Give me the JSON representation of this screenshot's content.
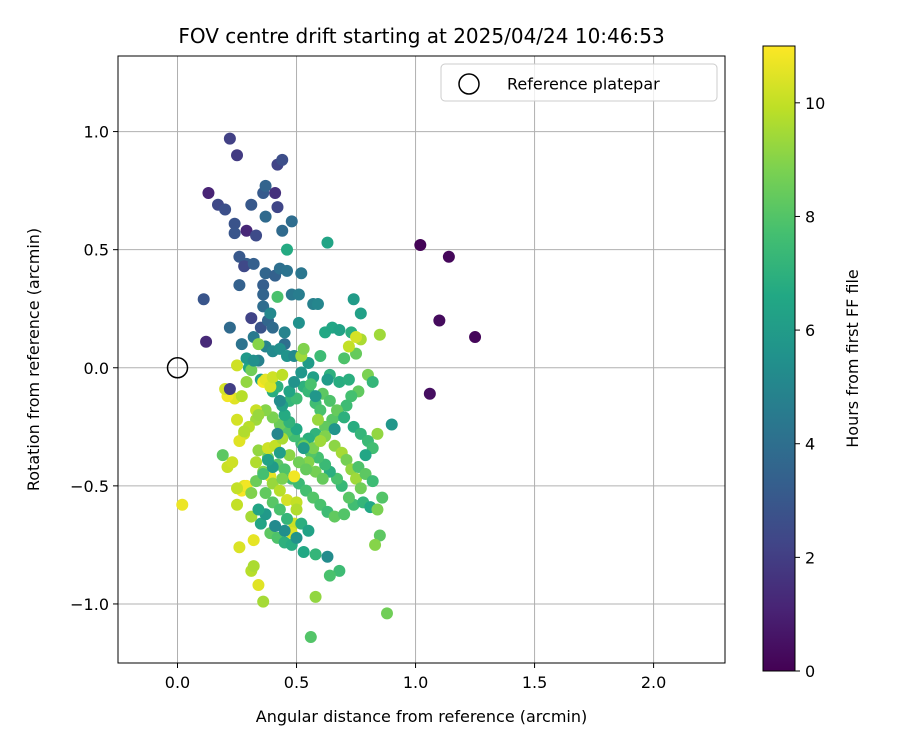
{
  "chart_data": {
    "type": "scatter",
    "title": "FOV centre drift starting at 2025/04/24 10:46:53",
    "xlabel": "Angular distance from reference (arcmin)",
    "ylabel": "Rotation from reference (arcmin)",
    "xlim": [
      -0.25,
      2.3
    ],
    "ylim": [
      -1.25,
      1.32
    ],
    "xticks": [
      0.0,
      0.5,
      1.0,
      1.5,
      2.0
    ],
    "xtick_labels": [
      "0.0",
      "0.5",
      "1.0",
      "1.5",
      "2.0"
    ],
    "yticks": [
      -1.0,
      -0.5,
      0.0,
      0.5,
      1.0
    ],
    "ytick_labels": [
      "−1.0",
      "−0.5",
      "0.0",
      "0.5",
      "1.0"
    ],
    "grid": true,
    "legend": {
      "position": "top-right",
      "entries": [
        "Reference platepar"
      ]
    },
    "reference_point": {
      "x": 0.0,
      "y": 0.0
    },
    "colorbar": {
      "label": "Hours from first FF file",
      "colormap": "viridis",
      "range": [
        0,
        11
      ],
      "ticks": [
        0,
        2,
        4,
        6,
        8,
        10
      ],
      "tick_labels": [
        "0",
        "2",
        "4",
        "6",
        "8",
        "10"
      ]
    },
    "points": [
      [
        1.02,
        0.52,
        0.1
      ],
      [
        1.14,
        0.47,
        0.2
      ],
      [
        1.1,
        0.2,
        0.3
      ],
      [
        1.25,
        0.13,
        0.2
      ],
      [
        1.06,
        -0.11,
        0.4
      ],
      [
        0.13,
        0.74,
        1.1
      ],
      [
        0.12,
        0.11,
        1.3
      ],
      [
        0.29,
        0.58,
        1.2
      ],
      [
        0.41,
        0.74,
        1.5
      ],
      [
        0.25,
        0.9,
        1.9
      ],
      [
        0.22,
        0.97,
        2.1
      ],
      [
        0.42,
        0.86,
        2.2
      ],
      [
        0.44,
        0.88,
        2.6
      ],
      [
        0.17,
        0.69,
        2.4
      ],
      [
        0.2,
        0.67,
        2.7
      ],
      [
        0.11,
        0.29,
        2.9
      ],
      [
        0.24,
        0.61,
        2.8
      ],
      [
        0.24,
        0.57,
        2.9
      ],
      [
        0.31,
        0.69,
        3.0
      ],
      [
        0.36,
        0.74,
        3.1
      ],
      [
        0.37,
        0.77,
        3.5
      ],
      [
        0.42,
        0.68,
        2.3
      ],
      [
        0.33,
        0.56,
        2.5
      ],
      [
        0.26,
        0.47,
        3.0
      ],
      [
        0.29,
        0.44,
        3.2
      ],
      [
        0.28,
        0.43,
        2.4
      ],
      [
        0.32,
        0.44,
        3.3
      ],
      [
        0.36,
        0.35,
        3.3
      ],
      [
        0.37,
        0.4,
        3.6
      ],
      [
        0.41,
        0.39,
        3.4
      ],
      [
        0.26,
        0.35,
        3.4
      ],
      [
        0.37,
        0.64,
        3.8
      ],
      [
        0.44,
        0.58,
        3.8
      ],
      [
        0.48,
        0.62,
        3.9
      ],
      [
        0.43,
        0.42,
        4.0
      ],
      [
        0.46,
        0.41,
        4.2
      ],
      [
        0.52,
        0.4,
        4.3
      ],
      [
        0.48,
        0.31,
        4.4
      ],
      [
        0.36,
        0.31,
        3.5
      ],
      [
        0.36,
        0.26,
        3.9
      ],
      [
        0.22,
        0.17,
        3.8
      ],
      [
        0.31,
        0.21,
        2.2
      ],
      [
        0.35,
        0.17,
        2.8
      ],
      [
        0.38,
        0.2,
        3.6
      ],
      [
        0.4,
        0.17,
        3.8
      ],
      [
        0.45,
        0.1,
        4.0
      ],
      [
        0.51,
        0.31,
        4.6
      ],
      [
        0.57,
        0.27,
        4.8
      ],
      [
        0.59,
        0.27,
        5.0
      ],
      [
        0.27,
        0.1,
        4.2
      ],
      [
        0.32,
        0.13,
        4.5
      ],
      [
        0.34,
        0.03,
        4.8
      ],
      [
        0.37,
        0.09,
        4.9
      ],
      [
        0.4,
        0.07,
        5.2
      ],
      [
        0.43,
        0.08,
        5.4
      ],
      [
        0.46,
        0.05,
        5.6
      ],
      [
        0.49,
        0.05,
        5.2
      ],
      [
        0.52,
        -0.02,
        5.8
      ],
      [
        0.55,
        0.02,
        6.0
      ],
      [
        0.57,
        -0.04,
        6.2
      ],
      [
        0.3,
        0.0,
        6.5
      ],
      [
        0.35,
        -0.05,
        6.2
      ],
      [
        0.4,
        -0.1,
        6.8
      ],
      [
        0.42,
        -0.08,
        7.0
      ],
      [
        0.47,
        -0.14,
        7.2
      ],
      [
        0.5,
        -0.13,
        7.5
      ],
      [
        0.53,
        -0.08,
        7.0
      ],
      [
        0.55,
        -0.1,
        7.3
      ],
      [
        0.58,
        -0.15,
        7.6
      ],
      [
        0.6,
        -0.18,
        7.8
      ],
      [
        0.62,
        0.15,
        6.6
      ],
      [
        0.65,
        0.17,
        6.5
      ],
      [
        0.68,
        0.16,
        6.3
      ],
      [
        0.73,
        0.15,
        6.9
      ],
      [
        0.74,
        0.29,
        6.0
      ],
      [
        0.77,
        0.23,
        6.2
      ],
      [
        0.63,
        0.53,
        6.4
      ],
      [
        0.46,
        0.5,
        6.7
      ],
      [
        0.42,
        0.3,
        7.8
      ],
      [
        0.6,
        0.05,
        7.5
      ],
      [
        0.64,
        -0.03,
        7.0
      ],
      [
        0.68,
        -0.06,
        6.8
      ],
      [
        0.72,
        -0.05,
        6.9
      ],
      [
        0.7,
        0.04,
        7.9
      ],
      [
        0.75,
        0.06,
        8.4
      ],
      [
        0.77,
        0.12,
        9.6
      ],
      [
        0.85,
        0.14,
        9.4
      ],
      [
        0.8,
        -0.03,
        8.8
      ],
      [
        0.82,
        -0.06,
        7.2
      ],
      [
        0.9,
        -0.24,
        5.8
      ],
      [
        0.76,
        -0.1,
        8.3
      ],
      [
        0.73,
        -0.12,
        7.7
      ],
      [
        0.71,
        -0.16,
        7.5
      ],
      [
        0.68,
        -0.2,
        7.9
      ],
      [
        0.65,
        -0.22,
        8.1
      ],
      [
        0.62,
        -0.25,
        8.3
      ],
      [
        0.58,
        -0.28,
        7.1
      ],
      [
        0.55,
        -0.3,
        6.9
      ],
      [
        0.52,
        -0.32,
        7.4
      ],
      [
        0.49,
        -0.29,
        7.6
      ],
      [
        0.46,
        -0.27,
        8.0
      ],
      [
        0.43,
        -0.24,
        8.5
      ],
      [
        0.4,
        -0.21,
        8.8
      ],
      [
        0.37,
        -0.18,
        9.0
      ],
      [
        0.33,
        -0.22,
        9.4
      ],
      [
        0.3,
        -0.25,
        9.8
      ],
      [
        0.28,
        -0.28,
        10.2
      ],
      [
        0.26,
        -0.31,
        10.5
      ],
      [
        0.34,
        -0.35,
        9.2
      ],
      [
        0.38,
        -0.38,
        8.6
      ],
      [
        0.42,
        -0.41,
        8.2
      ],
      [
        0.45,
        -0.43,
        7.9
      ],
      [
        0.48,
        -0.47,
        7.6
      ],
      [
        0.51,
        -0.49,
        7.4
      ],
      [
        0.54,
        -0.52,
        7.7
      ],
      [
        0.57,
        -0.55,
        8.0
      ],
      [
        0.6,
        -0.58,
        7.8
      ],
      [
        0.63,
        -0.61,
        7.5
      ],
      [
        0.66,
        -0.63,
        8.3
      ],
      [
        0.7,
        -0.62,
        8.0
      ],
      [
        0.74,
        -0.58,
        7.6
      ],
      [
        0.78,
        -0.57,
        7.2
      ],
      [
        0.81,
        -0.59,
        6.6
      ],
      [
        0.84,
        -0.6,
        8.8
      ],
      [
        0.86,
        -0.55,
        8.0
      ],
      [
        0.35,
        -0.66,
        6.4
      ],
      [
        0.39,
        -0.7,
        8.2
      ],
      [
        0.42,
        -0.72,
        7.9
      ],
      [
        0.45,
        -0.74,
        7.0
      ],
      [
        0.48,
        -0.75,
        6.8
      ],
      [
        0.53,
        -0.78,
        6.6
      ],
      [
        0.58,
        -0.79,
        7.2
      ],
      [
        0.63,
        -0.8,
        5.3
      ],
      [
        0.68,
        -0.86,
        7.5
      ],
      [
        0.64,
        -0.88,
        7.8
      ],
      [
        0.85,
        -0.71,
        8.2
      ],
      [
        0.83,
        -0.75,
        9.0
      ],
      [
        0.88,
        -1.04,
        8.6
      ],
      [
        0.58,
        -0.97,
        9.2
      ],
      [
        0.56,
        -1.14,
        8.0
      ],
      [
        0.36,
        -0.99,
        9.5
      ],
      [
        0.34,
        -0.92,
        10.5
      ],
      [
        0.31,
        -0.86,
        9.8
      ],
      [
        0.32,
        -0.84,
        9.6
      ],
      [
        0.26,
        -0.76,
        10.4
      ],
      [
        0.32,
        -0.73,
        10.6
      ],
      [
        0.31,
        -0.63,
        9.5
      ],
      [
        0.02,
        -0.58,
        10.7
      ],
      [
        0.25,
        -0.58,
        10.0
      ],
      [
        0.27,
        -0.52,
        10.9
      ],
      [
        0.28,
        -0.5,
        10.5
      ],
      [
        0.29,
        -0.5,
        10.8
      ],
      [
        0.25,
        -0.51,
        10.0
      ],
      [
        0.21,
        -0.42,
        10.1
      ],
      [
        0.23,
        -0.4,
        10.2
      ],
      [
        0.19,
        -0.37,
        8.2
      ],
      [
        0.33,
        -0.4,
        9.7
      ],
      [
        0.36,
        -0.44,
        9.0
      ],
      [
        0.39,
        -0.46,
        10.6
      ],
      [
        0.4,
        -0.49,
        9.3
      ],
      [
        0.43,
        -0.52,
        9.8
      ],
      [
        0.46,
        -0.56,
        10.3
      ],
      [
        0.5,
        -0.57,
        10.0
      ],
      [
        0.49,
        -0.46,
        10.8
      ],
      [
        0.5,
        -0.6,
        9.7
      ],
      [
        0.49,
        -0.66,
        10.1
      ],
      [
        0.48,
        -0.7,
        10.4
      ],
      [
        0.38,
        -0.34,
        10.2
      ],
      [
        0.41,
        -0.33,
        10.0
      ],
      [
        0.44,
        -0.3,
        9.6
      ],
      [
        0.28,
        -0.27,
        9.7
      ],
      [
        0.25,
        -0.22,
        10.3
      ],
      [
        0.33,
        -0.18,
        10.1
      ],
      [
        0.34,
        -0.2,
        9.3
      ],
      [
        0.24,
        -0.13,
        10.5
      ],
      [
        0.21,
        -0.12,
        10.8
      ],
      [
        0.2,
        -0.09,
        10.3
      ],
      [
        0.22,
        -0.09,
        2.0
      ],
      [
        0.27,
        -0.12,
        9.8
      ],
      [
        0.36,
        -0.06,
        10.9
      ],
      [
        0.37,
        -0.05,
        10.6
      ],
      [
        0.39,
        -0.08,
        10.4
      ],
      [
        0.4,
        -0.04,
        10.2
      ],
      [
        0.44,
        -0.03,
        9.9
      ],
      [
        0.25,
        0.01,
        10.2
      ],
      [
        0.72,
        0.09,
        10.0
      ],
      [
        0.75,
        0.13,
        10.3
      ],
      [
        0.59,
        -0.22,
        9.3
      ],
      [
        0.62,
        -0.29,
        8.9
      ],
      [
        0.66,
        -0.33,
        9.1
      ],
      [
        0.69,
        -0.36,
        9.5
      ],
      [
        0.71,
        -0.39,
        8.7
      ],
      [
        0.73,
        -0.43,
        9.2
      ],
      [
        0.75,
        -0.47,
        9.4
      ],
      [
        0.77,
        -0.51,
        8.6
      ],
      [
        0.72,
        -0.55,
        8.1
      ],
      [
        0.69,
        -0.5,
        7.3
      ],
      [
        0.67,
        -0.47,
        7.8
      ],
      [
        0.64,
        -0.44,
        6.9
      ],
      [
        0.62,
        -0.41,
        7.4
      ],
      [
        0.59,
        -0.38,
        7.7
      ],
      [
        0.56,
        -0.36,
        8.0
      ],
      [
        0.53,
        -0.33,
        8.5
      ],
      [
        0.5,
        -0.26,
        6.6
      ],
      [
        0.47,
        -0.23,
        7.1
      ],
      [
        0.45,
        -0.2,
        6.7
      ],
      [
        0.44,
        -0.16,
        6.2
      ],
      [
        0.47,
        -0.1,
        6.4
      ],
      [
        0.56,
        -0.07,
        7.8
      ],
      [
        0.61,
        -0.11,
        8.2
      ],
      [
        0.64,
        -0.14,
        7.9
      ],
      [
        0.67,
        -0.18,
        8.4
      ],
      [
        0.7,
        -0.21,
        7.0
      ],
      [
        0.74,
        -0.25,
        6.8
      ],
      [
        0.77,
        -0.28,
        7.2
      ],
      [
        0.8,
        -0.31,
        7.4
      ],
      [
        0.82,
        -0.34,
        7.6
      ],
      [
        0.84,
        -0.28,
        9.2
      ],
      [
        0.79,
        -0.37,
        6.5
      ],
      [
        0.76,
        -0.42,
        7.9
      ],
      [
        0.79,
        -0.45,
        8.2
      ],
      [
        0.82,
        -0.48,
        7.5
      ],
      [
        0.55,
        -0.4,
        9.0
      ],
      [
        0.58,
        -0.44,
        8.7
      ],
      [
        0.61,
        -0.47,
        8.4
      ],
      [
        0.37,
        -0.53,
        8.3
      ],
      [
        0.4,
        -0.57,
        8.1
      ],
      [
        0.43,
        -0.6,
        7.8
      ],
      [
        0.46,
        -0.64,
        7.2
      ],
      [
        0.52,
        -0.66,
        6.9
      ],
      [
        0.55,
        -0.69,
        6.3
      ],
      [
        0.5,
        -0.72,
        5.6
      ],
      [
        0.45,
        -0.69,
        5.4
      ],
      [
        0.41,
        -0.67,
        5.2
      ],
      [
        0.37,
        -0.62,
        5.9
      ],
      [
        0.34,
        -0.6,
        6.4
      ],
      [
        0.31,
        -0.53,
        8.9
      ],
      [
        0.33,
        -0.48,
        8.5
      ],
      [
        0.36,
        -0.45,
        7.7
      ],
      [
        0.44,
        -0.47,
        8.8
      ],
      [
        0.47,
        -0.37,
        9.1
      ],
      [
        0.51,
        -0.4,
        8.6
      ],
      [
        0.54,
        -0.43,
        8.4
      ],
      [
        0.57,
        -0.34,
        8.8
      ],
      [
        0.6,
        -0.31,
        9.4
      ],
      [
        0.43,
        -0.14,
        5.3
      ],
      [
        0.49,
        -0.06,
        5.6
      ],
      [
        0.52,
        0.05,
        9.4
      ],
      [
        0.53,
        0.08,
        8.9
      ],
      [
        0.45,
        0.15,
        4.9
      ],
      [
        0.51,
        0.19,
        5.5
      ],
      [
        0.39,
        0.23,
        5.1
      ],
      [
        0.34,
        0.1,
        9.0
      ],
      [
        0.31,
        -0.01,
        8.6
      ],
      [
        0.29,
        -0.06,
        9.2
      ],
      [
        0.42,
        -0.28,
        5.0
      ],
      [
        0.53,
        -0.34,
        6.0
      ],
      [
        0.66,
        -0.26,
        5.7
      ],
      [
        0.58,
        -0.12,
        5.8
      ],
      [
        0.63,
        -0.05,
        6.0
      ],
      [
        0.4,
        -0.42,
        6.0
      ],
      [
        0.38,
        -0.39,
        6.3
      ],
      [
        0.43,
        -0.36,
        6.1
      ],
      [
        0.29,
        0.04,
        5.9
      ],
      [
        0.32,
        0.03,
        5.4
      ]
    ]
  }
}
